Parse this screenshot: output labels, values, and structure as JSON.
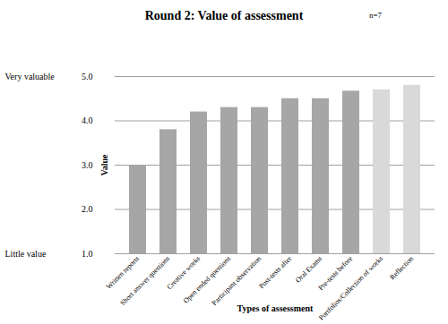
{
  "chart_data": {
    "type": "bar",
    "title": "Round 2: Value of assessment",
    "subtitle": "n=7",
    "x_label": "Types of assessment",
    "y_label": "Value",
    "categories": [
      "Written reports",
      "Short answer questions",
      "Creative works",
      "Open ended questions",
      "Participant observation",
      "Post-tests after",
      "Oral Exams",
      "Pre-tests before",
      "Portfolios/Collection of works",
      "Reflection"
    ],
    "values": [
      3.0,
      3.8,
      4.2,
      4.3,
      4.3,
      4.5,
      4.5,
      4.67,
      4.7,
      4.8
    ],
    "colors": [
      "#a6a6a6",
      "#a6a6a6",
      "#a6a6a6",
      "#a6a6a6",
      "#a6a6a6",
      "#a6a6a6",
      "#a6a6a6",
      "#a6a6a6",
      "#d9d9d9",
      "#d9d9d9"
    ],
    "ylim": [
      1,
      5
    ],
    "yticks": [
      {
        "value": 1,
        "label": "1.0"
      },
      {
        "value": 2,
        "label": "2.0"
      },
      {
        "value": 3,
        "label": "3.0"
      },
      {
        "value": 4,
        "label": "4.0"
      },
      {
        "value": 5,
        "label": "5.0"
      }
    ],
    "annotations": [
      {
        "text": "Very valuable",
        "y": 5
      },
      {
        "text": "Little value",
        "y": 1
      }
    ],
    "grid": true
  }
}
